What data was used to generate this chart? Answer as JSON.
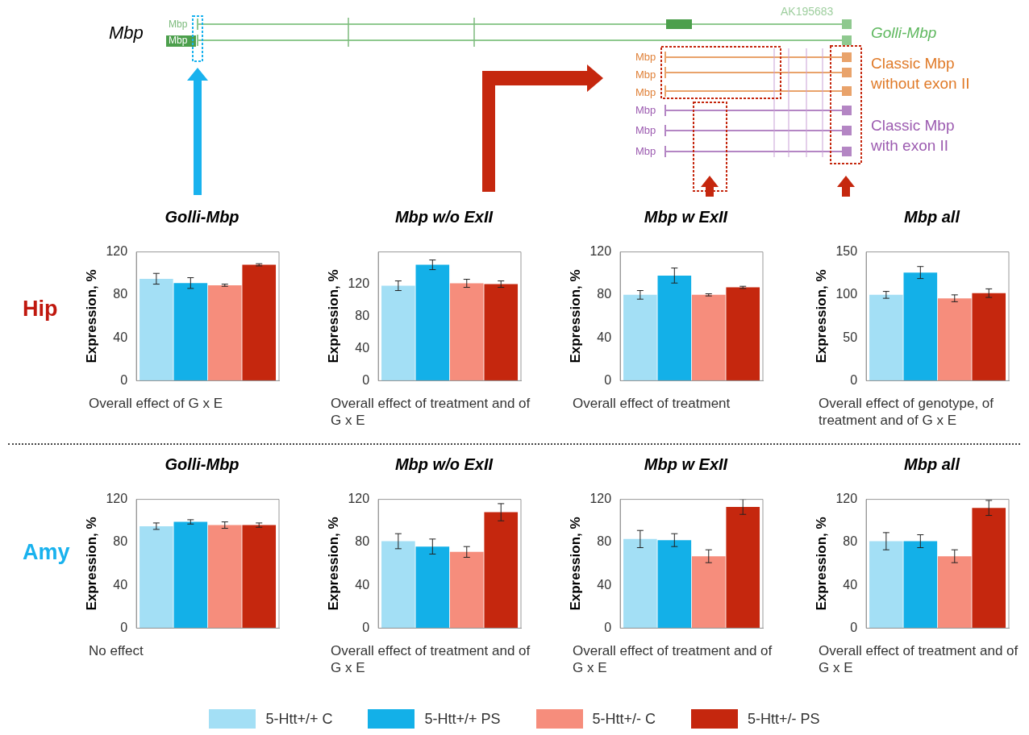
{
  "chart_data": [
    {
      "type": "other",
      "annotations": [
        "Mbp",
        "AK195683",
        "Mbp",
        "Mbp",
        "Mbp",
        "Mbp",
        "Mbp",
        "Mbp",
        "Mbp",
        "Mbp",
        "Golli-Mbp",
        "Classic Mbp",
        "without exon II",
        "Classic Mbp",
        "with exon II",
        "Hip",
        "Amy"
      ]
    },
    {
      "type": "bar",
      "title": "Golli-Mbp",
      "ylabel": "Expression, %",
      "categories": [
        null
      ],
      "ylim": [
        0,
        120
      ],
      "yticks": [
        0,
        40,
        80,
        120
      ],
      "tick_labels": "y",
      "annotations": [
        "Overall effect of G x E"
      ],
      "series": [
        {
          "color": "#a3dff5",
          "values": [
            95
          ],
          "errors": [
            5
          ]
        },
        {
          "color": "#13b0e8",
          "values": [
            91
          ],
          "errors": [
            5
          ]
        },
        {
          "color": "#f68d7c",
          "values": [
            89
          ],
          "errors": [
            1
          ]
        },
        {
          "color": "#c5270e",
          "values": [
            108
          ],
          "errors": [
            1
          ]
        }
      ]
    },
    {
      "type": "bar",
      "title": "Mbp w/o ExII",
      "ylabel": "Expression, %",
      "categories": [
        null
      ],
      "ylim": [
        0,
        160
      ],
      "yticks": [
        0,
        40,
        80,
        120
      ],
      "tick_labels": "y",
      "annotations": [
        "Overall effect of treatment and of G x E"
      ],
      "series": [
        {
          "color": "#a3dff5",
          "values": [
            118
          ],
          "errors": [
            6
          ]
        },
        {
          "color": "#13b0e8",
          "values": [
            144
          ],
          "errors": [
            6
          ]
        },
        {
          "color": "#f68d7c",
          "values": [
            121
          ],
          "errors": [
            5
          ]
        },
        {
          "color": "#c5270e",
          "values": [
            120
          ],
          "errors": [
            4
          ]
        }
      ]
    },
    {
      "type": "bar",
      "title": "Mbp w ExII",
      "ylabel": "Expression, %",
      "categories": [
        null
      ],
      "ylim": [
        0,
        120
      ],
      "yticks": [
        0,
        40,
        80,
        120
      ],
      "tick_labels": "y",
      "annotations": [
        "Overall effect of treatment"
      ],
      "series": [
        {
          "color": "#a3dff5",
          "values": [
            80
          ],
          "errors": [
            4
          ]
        },
        {
          "color": "#13b0e8",
          "values": [
            98
          ],
          "errors": [
            7
          ]
        },
        {
          "color": "#f68d7c",
          "values": [
            80
          ],
          "errors": [
            1
          ]
        },
        {
          "color": "#c5270e",
          "values": [
            87
          ],
          "errors": [
            1
          ]
        }
      ]
    },
    {
      "type": "bar",
      "title": "Mbp all",
      "ylabel": "Expression, %",
      "categories": [
        null
      ],
      "ylim": [
        0,
        150
      ],
      "yticks": [
        0,
        50,
        100,
        150
      ],
      "tick_labels": "y",
      "annotations": [
        "Overall effect of genotype, of treatment and of G x E"
      ],
      "series": [
        {
          "color": "#a3dff5",
          "values": [
            100
          ],
          "errors": [
            4
          ]
        },
        {
          "color": "#13b0e8",
          "values": [
            126
          ],
          "errors": [
            7
          ]
        },
        {
          "color": "#f68d7c",
          "values": [
            96
          ],
          "errors": [
            4
          ]
        },
        {
          "color": "#c5270e",
          "values": [
            102
          ],
          "errors": [
            5
          ]
        }
      ]
    },
    {
      "type": "bar",
      "title": "Golli-Mbp",
      "ylabel": "Expression, %",
      "categories": [
        null
      ],
      "ylim": [
        0,
        120
      ],
      "yticks": [
        0,
        40,
        80,
        120
      ],
      "tick_labels": "y",
      "annotations": [
        "No effect"
      ],
      "series": [
        {
          "color": "#a3dff5",
          "values": [
            95
          ],
          "errors": [
            3
          ]
        },
        {
          "color": "#13b0e8",
          "values": [
            99
          ],
          "errors": [
            2
          ]
        },
        {
          "color": "#f68d7c",
          "values": [
            96
          ],
          "errors": [
            3
          ]
        },
        {
          "color": "#c5270e",
          "values": [
            96
          ],
          "errors": [
            2
          ]
        }
      ]
    },
    {
      "type": "bar",
      "title": "Mbp w/o  ExII",
      "ylabel": "Expression, %",
      "categories": [
        null
      ],
      "ylim": [
        0,
        120
      ],
      "yticks": [
        0,
        40,
        80,
        120
      ],
      "tick_labels": "y",
      "annotations": [
        "Overall effect of treatment and of G x E"
      ],
      "series": [
        {
          "color": "#a3dff5",
          "values": [
            81
          ],
          "errors": [
            7
          ]
        },
        {
          "color": "#13b0e8",
          "values": [
            76
          ],
          "errors": [
            7
          ]
        },
        {
          "color": "#f68d7c",
          "values": [
            71
          ],
          "errors": [
            5
          ]
        },
        {
          "color": "#c5270e",
          "values": [
            108
          ],
          "errors": [
            8
          ]
        }
      ]
    },
    {
      "type": "bar",
      "title": "Mbp w ExII",
      "ylabel": "Expression, %",
      "categories": [
        null
      ],
      "ylim": [
        0,
        120
      ],
      "yticks": [
        0,
        40,
        80,
        120
      ],
      "tick_labels": "y",
      "annotations": [
        "Overall effect of treatment and of G x E"
      ],
      "series": [
        {
          "color": "#a3dff5",
          "values": [
            83
          ],
          "errors": [
            8
          ]
        },
        {
          "color": "#13b0e8",
          "values": [
            82
          ],
          "errors": [
            6
          ]
        },
        {
          "color": "#f68d7c",
          "values": [
            67
          ],
          "errors": [
            6
          ]
        },
        {
          "color": "#c5270e",
          "values": [
            113
          ],
          "errors": [
            7
          ]
        }
      ]
    },
    {
      "type": "bar",
      "title": "Mbp all",
      "ylabel": "Expression, %",
      "categories": [
        null
      ],
      "ylim": [
        0,
        120
      ],
      "yticks": [
        0,
        40,
        80,
        120
      ],
      "tick_labels": "y",
      "legend": "bottom",
      "annotations": [
        "Overall effect of treatment and of G x E"
      ],
      "series": [
        {
          "name": "5-Htt+/+ C",
          "color": "#a3dff5",
          "values": [
            81
          ],
          "errors": [
            8
          ]
        },
        {
          "name": "5-Htt+/+ PS",
          "color": "#13b0e8",
          "values": [
            81
          ],
          "errors": [
            6
          ]
        },
        {
          "name": "5-Htt+/- C",
          "color": "#f68d7c",
          "values": [
            67
          ],
          "errors": [
            6
          ]
        },
        {
          "name": "5-Htt+/- PS",
          "color": "#c5270e",
          "values": [
            112
          ],
          "errors": [
            7
          ]
        }
      ]
    }
  ]
}
